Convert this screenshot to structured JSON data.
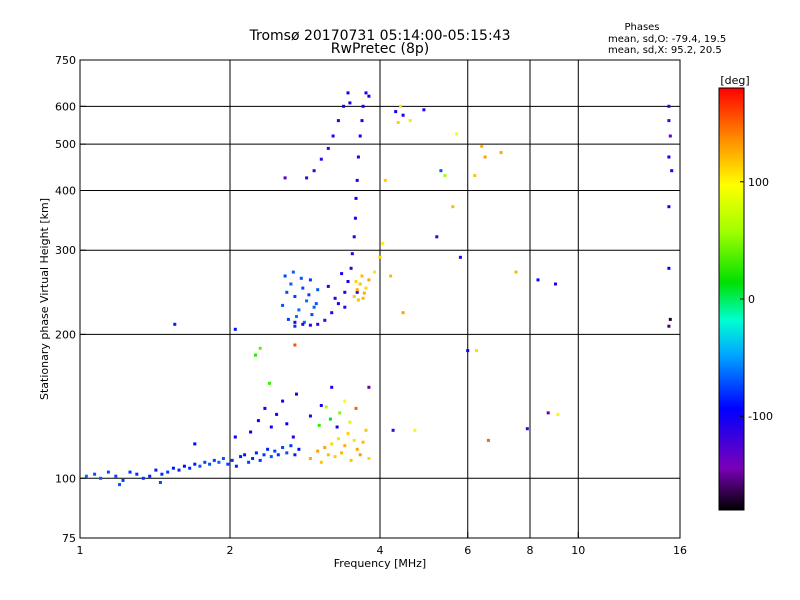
{
  "header": {
    "title": "Tromsø 20170731 05:14:00-05:15:43",
    "subtitle": "RwPretec (8p)"
  },
  "phases_box": {
    "heading": "Phases",
    "line_o": "mean, sd,O: -79.4, 19.5",
    "line_x": "mean, sd,X:  95.2, 20.5"
  },
  "colorbar": {
    "unit_label": "[deg]",
    "ticks": [
      {
        "value": 100,
        "label": "100"
      },
      {
        "value": 0,
        "label": "0"
      },
      {
        "value": -100,
        "label": "-100"
      }
    ],
    "range": [
      -180,
      180
    ]
  },
  "chart_data": {
    "type": "scatter",
    "title": "Tromsø 20170731 05:14:00-05:15:43",
    "subtitle": "RwPretec (8p)",
    "xlabel": "Frequency [MHz]",
    "ylabel": "Stationary phase Virtual Height [km]",
    "x_scale": "log",
    "y_scale": "log",
    "xlim": [
      1,
      16
    ],
    "ylim": [
      75,
      750
    ],
    "grid": true,
    "x_ticks": [
      {
        "value": 1,
        "label": "1",
        "grid": false
      },
      {
        "value": 2,
        "label": "2",
        "grid": true
      },
      {
        "value": 4,
        "label": "4",
        "grid": true
      },
      {
        "value": 6,
        "label": "6",
        "grid": true
      },
      {
        "value": 8,
        "label": "8",
        "grid": true
      },
      {
        "value": 10,
        "label": "10",
        "grid": true
      },
      {
        "value": 16,
        "label": "16",
        "grid": false
      }
    ],
    "y_ticks": [
      {
        "value": 75,
        "label": "75",
        "grid": false
      },
      {
        "value": 100,
        "label": "100",
        "grid": true
      },
      {
        "value": 200,
        "label": "200",
        "grid": true
      },
      {
        "value": 300,
        "label": "300",
        "grid": true
      },
      {
        "value": 400,
        "label": "400",
        "grid": true
      },
      {
        "value": 500,
        "label": "500",
        "grid": true
      },
      {
        "value": 600,
        "label": "600",
        "grid": true
      },
      {
        "value": 750,
        "label": "750",
        "grid": false
      }
    ],
    "color_scale": {
      "name": "rainbow",
      "min": -180,
      "max": 180,
      "unit": "deg"
    },
    "series": [
      {
        "values": [
          [
            1.03,
            101,
            -65
          ],
          [
            1.07,
            102,
            -70
          ],
          [
            1.1,
            100,
            -68
          ],
          [
            1.14,
            103,
            -72
          ],
          [
            1.18,
            101,
            -75
          ],
          [
            1.22,
            99,
            -78
          ],
          [
            1.26,
            103,
            -80
          ],
          [
            1.3,
            102,
            -82
          ],
          [
            1.34,
            100,
            -78
          ],
          [
            1.38,
            101,
            -85
          ],
          [
            1.42,
            104,
            -86
          ],
          [
            1.46,
            102,
            -83
          ],
          [
            1.5,
            103,
            -79
          ],
          [
            1.54,
            105,
            -88
          ],
          [
            1.58,
            104,
            -84
          ],
          [
            1.62,
            106,
            -90
          ],
          [
            1.66,
            105,
            -82
          ],
          [
            1.7,
            107,
            -86
          ],
          [
            1.74,
            106,
            -70
          ],
          [
            1.78,
            108,
            -75
          ],
          [
            1.82,
            107,
            -72
          ],
          [
            1.86,
            109,
            -78
          ],
          [
            1.9,
            108,
            -66
          ],
          [
            1.94,
            110,
            -70
          ],
          [
            1.98,
            107,
            -74
          ],
          [
            2.02,
            109,
            -80
          ],
          [
            2.06,
            106,
            -84
          ],
          [
            2.1,
            111,
            -86
          ],
          [
            2.14,
            112,
            -88
          ],
          [
            2.18,
            108,
            -76
          ],
          [
            2.22,
            110,
            -82
          ],
          [
            2.26,
            113,
            -85
          ],
          [
            2.3,
            109,
            -80
          ],
          [
            2.34,
            112,
            -78
          ],
          [
            2.38,
            115,
            -84
          ],
          [
            2.42,
            111,
            -70
          ],
          [
            2.46,
            114,
            -76
          ],
          [
            2.5,
            112,
            -80
          ],
          [
            2.55,
            116,
            -74
          ],
          [
            2.6,
            113,
            -72
          ],
          [
            2.65,
            117,
            -80
          ],
          [
            2.7,
            112,
            -85
          ],
          [
            2.75,
            115,
            -90
          ],
          [
            1.2,
            97,
            -70
          ],
          [
            1.45,
            98,
            -74
          ]
        ]
      },
      {
        "values": [
          [
            2.2,
            125,
            -95
          ],
          [
            2.28,
            132,
            -100
          ],
          [
            2.35,
            140,
            -98
          ],
          [
            2.42,
            128,
            -102
          ],
          [
            2.48,
            136,
            -104
          ],
          [
            2.55,
            145,
            -100
          ],
          [
            2.6,
            130,
            -96
          ],
          [
            2.68,
            122,
            -108
          ],
          [
            2.72,
            150,
            -105
          ],
          [
            1.7,
            118,
            -92
          ],
          [
            2.05,
            122,
            -95
          ],
          [
            2.9,
            135,
            -110
          ],
          [
            3.05,
            142,
            -108
          ],
          [
            3.2,
            155,
            -104
          ],
          [
            3.28,
            128,
            -100
          ]
        ]
      },
      {
        "values": [
          [
            2.9,
            110,
            125
          ],
          [
            3.0,
            114,
            130
          ],
          [
            3.05,
            108,
            118
          ],
          [
            3.1,
            116,
            128
          ],
          [
            3.15,
            112,
            120
          ],
          [
            3.2,
            118,
            110
          ],
          [
            3.25,
            111,
            115
          ],
          [
            3.3,
            121,
            108
          ],
          [
            3.35,
            113,
            122
          ],
          [
            3.4,
            117,
            126
          ],
          [
            3.45,
            124,
            112
          ],
          [
            3.5,
            109,
            118
          ],
          [
            3.55,
            120,
            105
          ],
          [
            3.6,
            115,
            128
          ],
          [
            3.65,
            112,
            132
          ],
          [
            3.7,
            119,
            120
          ],
          [
            3.75,
            126,
            116
          ],
          [
            3.8,
            110,
            110
          ],
          [
            3.02,
            129,
            30
          ],
          [
            3.18,
            133,
            10
          ],
          [
            3.32,
            137,
            50
          ],
          [
            3.48,
            131,
            80
          ],
          [
            3.58,
            140,
            150
          ],
          [
            3.4,
            145,
            95
          ],
          [
            3.12,
            141,
            60
          ]
        ]
      },
      {
        "values": [
          [
            2.55,
            230,
            -70
          ],
          [
            2.6,
            245,
            -72
          ],
          [
            2.65,
            255,
            -68
          ],
          [
            2.7,
            240,
            -75
          ],
          [
            2.75,
            225,
            -65
          ],
          [
            2.8,
            250,
            -74
          ],
          [
            2.85,
            235,
            -62
          ],
          [
            2.9,
            260,
            -78
          ],
          [
            2.95,
            228,
            -66
          ],
          [
            3.0,
            248,
            -70
          ],
          [
            2.62,
            215,
            -76
          ],
          [
            2.72,
            218,
            -60
          ],
          [
            2.82,
            212,
            -64
          ],
          [
            2.92,
            220,
            -72
          ],
          [
            2.58,
            265,
            -74
          ],
          [
            2.68,
            270,
            -66
          ],
          [
            2.78,
            262,
            -70
          ],
          [
            2.88,
            242,
            -76
          ],
          [
            2.98,
            232,
            -68
          ],
          [
            2.7,
            208,
            -80
          ]
        ]
      },
      {
        "values": [
          [
            2.7,
            212,
            -110
          ],
          [
            2.8,
            210,
            -112
          ],
          [
            2.9,
            209,
            -114
          ],
          [
            3.0,
            210,
            -116
          ],
          [
            3.1,
            214,
            -112
          ],
          [
            3.2,
            222,
            -110
          ],
          [
            3.3,
            232,
            -108
          ],
          [
            3.4,
            245,
            -106
          ],
          [
            3.45,
            258,
            -104
          ],
          [
            3.5,
            275,
            -108
          ],
          [
            3.52,
            295,
            -110
          ],
          [
            3.55,
            320,
            -106
          ],
          [
            3.57,
            350,
            -104
          ],
          [
            3.58,
            385,
            -102
          ],
          [
            3.6,
            420,
            -106
          ],
          [
            3.62,
            470,
            -108
          ],
          [
            3.65,
            520,
            -104
          ],
          [
            3.68,
            560,
            -100
          ],
          [
            3.7,
            600,
            -102
          ],
          [
            3.75,
            640,
            -100
          ],
          [
            3.45,
            640,
            -98
          ],
          [
            3.38,
            600,
            -104
          ],
          [
            3.3,
            560,
            -106
          ],
          [
            3.22,
            520,
            -108
          ],
          [
            3.15,
            490,
            -112
          ],
          [
            3.05,
            465,
            -116
          ],
          [
            2.95,
            440,
            -118
          ],
          [
            2.85,
            425,
            -120
          ],
          [
            3.48,
            610,
            -102
          ],
          [
            3.8,
            630,
            -96
          ],
          [
            3.6,
            245,
            -112
          ],
          [
            3.4,
            228,
            -114
          ],
          [
            3.25,
            238,
            -110
          ],
          [
            3.15,
            252,
            -108
          ],
          [
            3.35,
            268,
            -104
          ]
        ]
      },
      {
        "values": [
          [
            3.55,
            240,
            115
          ],
          [
            3.6,
            248,
            125
          ],
          [
            3.65,
            255,
            118
          ],
          [
            3.7,
            238,
            122
          ],
          [
            3.75,
            250,
            110
          ],
          [
            3.8,
            260,
            128
          ],
          [
            3.68,
            265,
            120
          ],
          [
            3.58,
            258,
            112
          ],
          [
            3.72,
            244,
            126
          ],
          [
            3.62,
            236,
            118
          ],
          [
            3.9,
            270,
            105
          ],
          [
            4.0,
            290,
            112
          ],
          [
            4.05,
            310,
            102
          ],
          [
            4.2,
            265,
            120
          ],
          [
            4.45,
            222,
            130
          ],
          [
            4.4,
            600,
            108
          ],
          [
            4.35,
            555,
            112
          ],
          [
            4.6,
            560,
            105
          ],
          [
            5.7,
            525,
            95
          ],
          [
            5.6,
            370,
            120
          ],
          [
            6.4,
            495,
            125
          ],
          [
            6.5,
            470,
            130
          ],
          [
            6.2,
            430,
            118
          ],
          [
            7.5,
            270,
            122
          ],
          [
            7.0,
            480,
            128
          ]
        ]
      },
      {
        "values": [
          [
            4.3,
            585,
            -100
          ],
          [
            4.45,
            575,
            -104
          ],
          [
            4.9,
            590,
            -108
          ],
          [
            5.2,
            320,
            -112
          ],
          [
            5.8,
            290,
            -106
          ],
          [
            6.0,
            185,
            -100
          ],
          [
            5.3,
            440,
            -70
          ],
          [
            8.3,
            260,
            -92
          ],
          [
            9.0,
            255,
            -110
          ],
          [
            7.9,
            127,
            -115
          ],
          [
            8.7,
            137,
            -150
          ],
          [
            15.2,
            600,
            -110
          ],
          [
            15.2,
            560,
            -120
          ],
          [
            15.3,
            520,
            -130
          ],
          [
            15.2,
            470,
            -100
          ],
          [
            15.4,
            440,
            -90
          ],
          [
            15.2,
            370,
            -105
          ],
          [
            15.2,
            275,
            -95
          ],
          [
            15.3,
            215,
            -170
          ],
          [
            15.2,
            208,
            -160
          ],
          [
            2.58,
            425,
            -130
          ],
          [
            1.55,
            210,
            -85
          ],
          [
            2.05,
            205,
            -88
          ],
          [
            3.8,
            155,
            -150
          ],
          [
            4.25,
            126,
            -118
          ]
        ]
      },
      {
        "values": [
          [
            2.25,
            181,
            25
          ],
          [
            2.3,
            187,
            40
          ],
          [
            2.7,
            190,
            155
          ],
          [
            2.4,
            158,
            30
          ],
          [
            6.25,
            185,
            110
          ],
          [
            4.7,
            126,
            100
          ],
          [
            6.6,
            120,
            150
          ],
          [
            9.1,
            136,
            100
          ],
          [
            4.1,
            420,
            115
          ],
          [
            5.4,
            430,
            60
          ]
        ]
      }
    ]
  }
}
